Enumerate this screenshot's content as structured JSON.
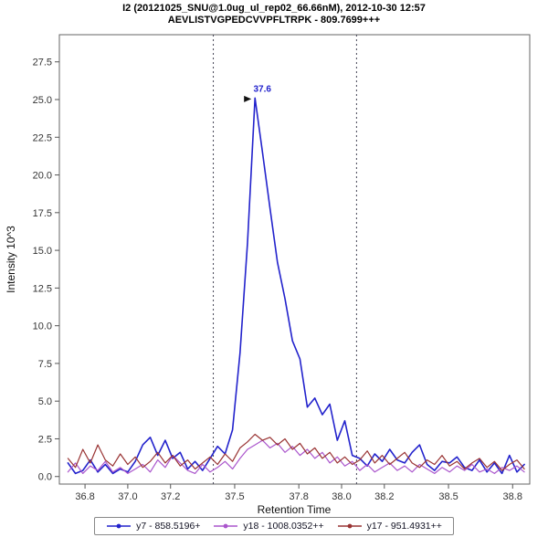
{
  "header": {
    "title_line1": "I2 (20121025_SNU@1.0ug_ul_rep02_66.66nM), 2012-10-30 12:57",
    "title_line2": "AEVLISTVGPEDCVVPFLTRPK - 809.7699+++"
  },
  "chart_data": {
    "type": "line",
    "title": "I2 (20121025_SNU@1.0ug_ul_rep02_66.66nM), 2012-10-30 12:57",
    "subtitle": "AEVLISTVGPEDCVVPFLTRPK - 809.7699+++",
    "xlabel": "Retention Time",
    "ylabel": "Intensity 10^3",
    "xlim": [
      36.68,
      38.88
    ],
    "ylim": [
      -0.5,
      29.3
    ],
    "grid": false,
    "legend_position": "bottom",
    "x_ticks": [
      36.8,
      37.0,
      37.2,
      37.5,
      37.8,
      38.0,
      38.2,
      38.5,
      38.8
    ],
    "x_tick_labels": [
      "36.8",
      "37.0",
      "37.2",
      "37.5",
      "37.8",
      "38.0",
      "38.2",
      "38.5",
      "38.8"
    ],
    "y_ticks": [
      0.0,
      2.5,
      5.0,
      7.5,
      10.0,
      12.5,
      15.0,
      17.5,
      20.0,
      22.5,
      25.0,
      27.5
    ],
    "y_tick_labels": [
      "0.0",
      "2.5",
      "5.0",
      "7.5",
      "10.0",
      "12.5",
      "15.0",
      "17.5",
      "20.0",
      "22.5",
      "25.0",
      "27.5"
    ],
    "boundary_lines_x": [
      37.4,
      38.07
    ],
    "peak_annotation": {
      "label": "37.6",
      "x": 37.595,
      "y": 25.1
    },
    "colors": {
      "frame": "#666666",
      "tick": "#555555",
      "boundary": "#444455",
      "annotation_text": "#2222CC",
      "annotation_arrow": "#111111"
    },
    "x": [
      36.72,
      36.755,
      36.79,
      36.825,
      36.86,
      36.895,
      36.93,
      36.965,
      37.0,
      37.035,
      37.07,
      37.105,
      37.14,
      37.175,
      37.21,
      37.245,
      37.28,
      37.315,
      37.35,
      37.385,
      37.42,
      37.455,
      37.49,
      37.525,
      37.56,
      37.595,
      37.63,
      37.665,
      37.7,
      37.735,
      37.77,
      37.805,
      37.84,
      37.875,
      37.91,
      37.945,
      37.98,
      38.015,
      38.05,
      38.085,
      38.12,
      38.155,
      38.19,
      38.225,
      38.26,
      38.295,
      38.33,
      38.365,
      38.4,
      38.435,
      38.47,
      38.505,
      38.54,
      38.575,
      38.61,
      38.645,
      38.68,
      38.715,
      38.75,
      38.785,
      38.82,
      38.855
    ],
    "series": [
      {
        "name": "y7 - 858.5196+",
        "color": "#2222CC",
        "width": 1.6,
        "values": [
          0.9,
          0.2,
          0.4,
          1.1,
          0.3,
          0.8,
          0.2,
          0.5,
          0.3,
          1.0,
          2.1,
          2.6,
          1.4,
          2.4,
          1.2,
          1.6,
          0.5,
          1.0,
          0.4,
          1.2,
          2.0,
          1.5,
          3.1,
          8.2,
          15.5,
          25.1,
          21.5,
          17.8,
          14.2,
          11.8,
          9.0,
          7.8,
          4.6,
          5.2,
          4.1,
          4.8,
          2.4,
          3.7,
          1.4,
          1.2,
          0.7,
          1.5,
          1.0,
          1.8,
          1.1,
          0.9,
          1.6,
          2.1,
          0.8,
          0.4,
          1.0,
          0.9,
          1.3,
          0.6,
          0.4,
          1.1,
          0.3,
          0.9,
          0.2,
          1.4,
          0.3,
          0.8
        ]
      },
      {
        "name": "y18 - 1008.0352++",
        "color": "#AA55CC",
        "width": 1.2,
        "values": [
          0.3,
          0.9,
          0.2,
          0.7,
          0.4,
          1.0,
          0.3,
          0.6,
          0.2,
          0.5,
          0.8,
          0.3,
          1.1,
          0.6,
          1.4,
          0.9,
          0.4,
          0.2,
          0.8,
          0.3,
          0.6,
          1.0,
          0.5,
          1.2,
          1.8,
          2.1,
          2.4,
          1.9,
          2.2,
          1.6,
          2.0,
          1.4,
          1.8,
          1.2,
          1.6,
          0.9,
          1.3,
          0.7,
          1.0,
          0.4,
          0.8,
          0.3,
          0.6,
          0.9,
          0.4,
          0.7,
          0.3,
          0.8,
          0.5,
          0.2,
          0.6,
          0.3,
          0.7,
          0.4,
          0.8,
          0.3,
          0.5,
          0.2,
          0.6,
          0.4,
          0.7,
          0.3
        ]
      },
      {
        "name": "y17 - 951.4931++",
        "color": "#993333",
        "width": 1.2,
        "values": [
          1.2,
          0.6,
          1.8,
          0.9,
          2.1,
          1.1,
          0.7,
          1.5,
          0.8,
          1.3,
          0.6,
          1.0,
          1.6,
          0.9,
          1.4,
          0.7,
          1.1,
          0.5,
          0.9,
          1.3,
          0.8,
          1.5,
          1.0,
          1.9,
          2.3,
          2.8,
          2.4,
          2.6,
          2.1,
          2.5,
          1.8,
          2.2,
          1.5,
          1.9,
          1.2,
          1.6,
          0.9,
          1.3,
          0.8,
          1.1,
          1.7,
          0.9,
          1.4,
          0.8,
          1.2,
          1.6,
          0.9,
          0.6,
          1.1,
          0.8,
          1.4,
          0.7,
          1.0,
          0.5,
          0.9,
          1.2,
          0.6,
          1.0,
          0.4,
          0.8,
          1.1,
          0.5
        ]
      }
    ]
  }
}
